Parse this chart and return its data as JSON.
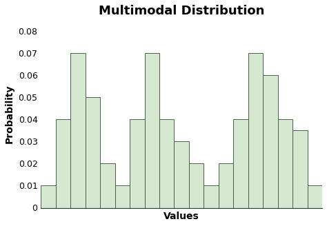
{
  "title": "Multimodal Distribution",
  "xlabel": "Values",
  "ylabel": "Probability",
  "values": [
    0.01,
    0.04,
    0.07,
    0.05,
    0.02,
    0.01,
    0.04,
    0.07,
    0.04,
    0.03,
    0.02,
    0.01,
    0.02,
    0.04,
    0.07,
    0.06,
    0.04,
    0.035,
    0.01
  ],
  "bar_color": "#d5e8d0",
  "bar_edge_color": "#4a5e4a",
  "ylim": [
    0,
    0.085
  ],
  "yticks": [
    0,
    0.01,
    0.02,
    0.03,
    0.04,
    0.05,
    0.06,
    0.07,
    0.08
  ],
  "title_fontsize": 13,
  "label_fontsize": 10,
  "tick_fontsize": 9,
  "background_color": "#ffffff"
}
